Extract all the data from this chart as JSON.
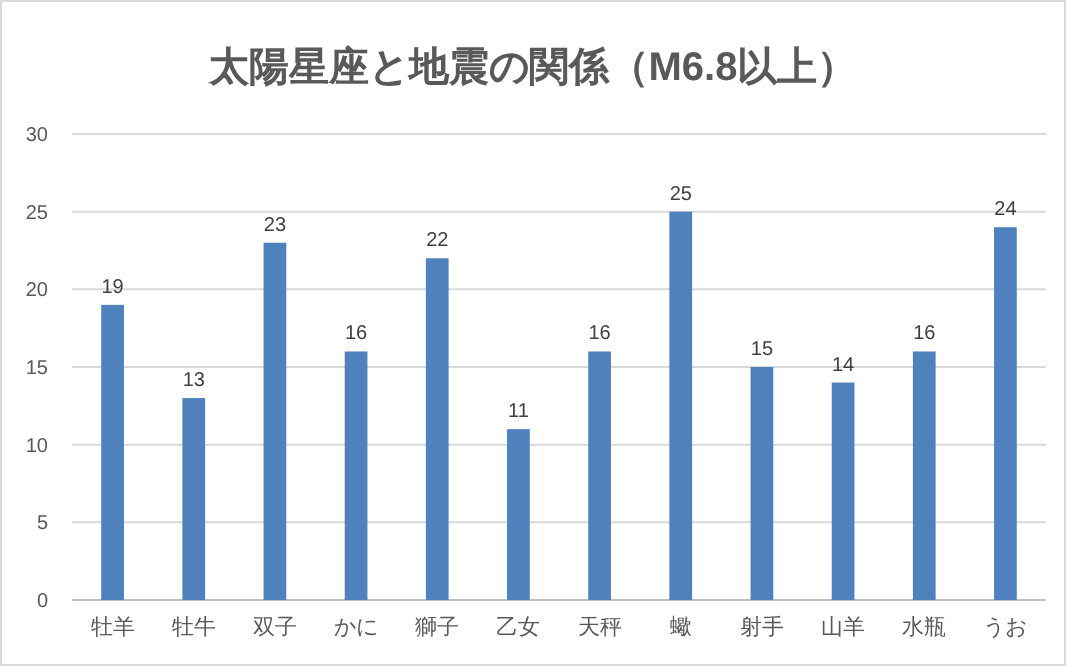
{
  "chart_data": {
    "type": "bar",
    "title": "太陽星座と地震の関係（M6.8以上）",
    "categories": [
      "牡羊",
      "牡牛",
      "双子",
      "かに",
      "獅子",
      "乙女",
      "天秤",
      "蠍",
      "射手",
      "山羊",
      "水瓶",
      "うお"
    ],
    "values": [
      19,
      13,
      23,
      16,
      22,
      11,
      16,
      25,
      15,
      14,
      16,
      24
    ],
    "color": "#4f81bd",
    "ylim": [
      0,
      30
    ],
    "yticks": [
      0,
      5,
      10,
      15,
      20,
      25,
      30
    ],
    "grid": "y",
    "data_labels": true
  }
}
